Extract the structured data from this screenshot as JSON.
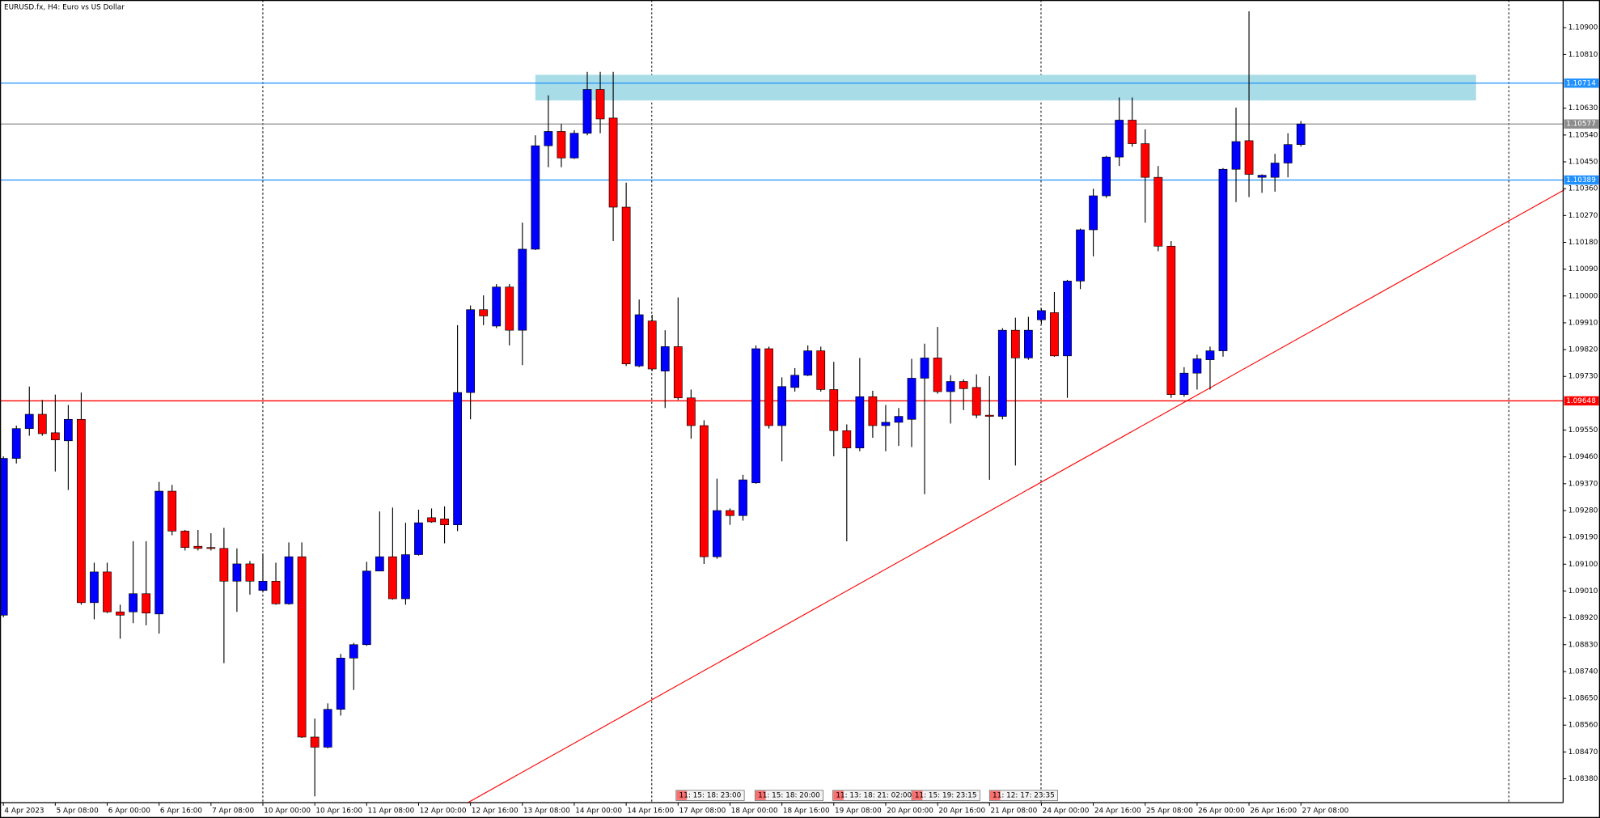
{
  "chart_data": {
    "type": "candlestick",
    "title": "EURUSD.fx, H4:  Euro vs US Dollar",
    "categories": [
      "4 Apr 2023",
      null,
      null,
      null,
      "5 Apr 08:00",
      null,
      null,
      null,
      "6 Apr 00:00",
      null,
      null,
      null,
      "6 Apr 16:00",
      null,
      null,
      null,
      "7 Apr 08:00",
      null,
      null,
      null,
      "10 Apr 00:00",
      null,
      null,
      null,
      "10 Apr 16:00",
      null,
      null,
      null,
      "11 Apr 08:00",
      null,
      null,
      null,
      "12 Apr 00:00",
      null,
      null,
      null,
      "12 Apr 16:00",
      null,
      null,
      null,
      "13 Apr 08:00",
      null,
      null,
      null,
      "14 Apr 00:00",
      null,
      null,
      null,
      "14 Apr 16:00",
      null,
      null,
      null,
      "17 Apr 08:00",
      null,
      null,
      null,
      "18 Apr 00:00",
      null,
      null,
      null,
      "18 Apr 16:00",
      null,
      null,
      null,
      "19 Apr 08:00",
      null,
      null,
      null,
      "20 Apr 00:00",
      null,
      null,
      null,
      "20 Apr 16:00",
      null,
      null,
      null,
      "21 Apr 08:00",
      null,
      null,
      null,
      "24 Apr 00:00",
      null,
      null,
      null,
      "24 Apr 16:00",
      null,
      null,
      null,
      "25 Apr 08:00",
      null,
      null,
      null,
      "26 Apr 00:00",
      null,
      null,
      null,
      "26 Apr 16:00",
      null,
      null,
      null,
      "27 Apr 08:00"
    ],
    "open": [
      1.08929,
      1.09455,
      1.09555,
      1.09603,
      1.09541,
      1.09514,
      1.09586,
      1.08971,
      1.09074,
      1.0894,
      1.0894,
      1.09001,
      1.08933,
      1.09345,
      1.09211,
      1.0916,
      1.09156,
      1.09153,
      1.09043,
      1.09101,
      1.09012,
      1.09043,
      1.08967,
      1.09125,
      1.0852,
      1.08486,
      1.08613,
      1.08785,
      1.0883,
      1.09077,
      1.09125,
      1.08984,
      1.09132,
      1.09256,
      1.09252,
      1.09232,
      1.09676,
      1.09954,
      1.09899,
      1.1003,
      1.09885,
      1.10157,
      1.10504,
      1.10552,
      1.10463,
      1.10546,
      1.10693,
      1.10597,
      1.10298,
      1.09765,
      1.09916,
      1.09748,
      1.0983,
      1.09658,
      1.09565,
      1.09125,
      1.0928,
      1.09263,
      1.09373,
      1.09823,
      1.09565,
      1.09693,
      1.09734,
      1.09816,
      1.09686,
      1.09548,
      1.0949,
      1.09662,
      1.09565,
      1.09576,
      1.09586,
      1.09724,
      1.09792,
      1.09679,
      1.09713,
      1.09693,
      1.096,
      1.09596,
      1.09885,
      1.09792,
      1.0992,
      1.09944,
      1.09799,
      1.1005,
      1.10222,
      1.10336,
      1.10466,
      1.1059,
      1.10511,
      1.10398,
      1.10167,
      1.09669,
      1.09741,
      1.09786,
      1.09816,
      1.10425,
      1.10521,
      1.10398,
      1.10398,
      1.10446,
      1.10508
    ],
    "high": [
      1.09462,
      1.09565,
      1.09696,
      1.09651,
      1.09669,
      1.09634,
      1.09676,
      1.09105,
      1.09105,
      1.08964,
      1.09177,
      1.09177,
      1.09376,
      1.09366,
      1.09215,
      1.09215,
      1.09204,
      1.09222,
      1.09153,
      1.09111,
      1.09136,
      1.09105,
      1.09173,
      1.09173,
      1.08582,
      1.08633,
      1.08799,
      1.08836,
      1.09108,
      1.09277,
      1.0929,
      1.09239,
      1.09283,
      1.09287,
      1.09294,
      1.09902,
      1.09968,
      1.10002,
      1.1004,
      1.1004,
      1.10246,
      1.10539,
      1.10673,
      1.10577,
      1.10556,
      1.10752,
      1.10752,
      1.10752,
      1.1038,
      1.09988,
      1.09937,
      1.09885,
      1.09995,
      1.09686,
      1.09583,
      1.09387,
      1.09287,
      1.094,
      1.09834,
      1.0983,
      1.09727,
      1.09758,
      1.09834,
      1.0983,
      1.09779,
      1.09569,
      1.09792,
      1.09682,
      1.09634,
      1.09624,
      1.09789,
      1.0984,
      1.09896,
      1.09734,
      1.0972,
      1.09737,
      1.09731,
      1.09892,
      1.09927,
      1.0993,
      1.09958,
      1.10013,
      1.10054,
      1.10226,
      1.1036,
      1.1047,
      1.10666,
      1.10666,
      1.10559,
      1.10436,
      1.10184,
      1.09761,
      1.09803,
      1.0983,
      1.10429,
      1.10632,
      1.10955,
      1.10408,
      1.10477,
      1.10546,
      1.10587
    ],
    "low": [
      1.08922,
      1.09438,
      1.09531,
      1.09531,
      1.09411,
      1.09349,
      1.08964,
      1.08915,
      1.08936,
      1.0885,
      1.08902,
      1.08895,
      1.08867,
      1.09197,
      1.09146,
      1.09146,
      1.09146,
      1.08768,
      1.0894,
      1.08998,
      1.09005,
      1.08964,
      1.08964,
      1.08517,
      1.08321,
      1.08482,
      1.08592,
      1.08678,
      1.08826,
      1.09077,
      1.08981,
      1.08964,
      1.09129,
      1.09239,
      1.0917,
      1.09211,
      1.09586,
      1.09902,
      1.09892,
      1.09834,
      1.09768,
      1.10154,
      1.10432,
      1.10432,
      1.1046,
      1.10539,
      1.10546,
      1.10184,
      1.09765,
      1.09761,
      1.09748,
      1.09624,
      1.09651,
      1.09521,
      1.09101,
      1.09118,
      1.09232,
      1.09246,
      1.0937,
      1.09555,
      1.09445,
      1.09679,
      1.09731,
      1.09679,
      1.09462,
      1.09177,
      1.09479,
      1.09524,
      1.09479,
      1.09497,
      1.09493,
      1.09335,
      1.09672,
      1.09572,
      1.09617,
      1.0959,
      1.09383,
      1.09586,
      1.09431,
      1.09786,
      1.09906,
      1.09796,
      1.09658,
      1.10023,
      1.10133,
      1.10329,
      1.10436,
      1.10501,
      1.10246,
      1.1015,
      1.09658,
      1.09662,
      1.09686,
      1.09686,
      1.09796,
      1.10315,
      1.10332,
      1.10346,
      1.1035,
      1.10398,
      1.10501
    ],
    "close": [
      1.09455,
      1.09555,
      1.09603,
      1.09538,
      1.09517,
      1.09586,
      1.08971,
      1.09074,
      1.0894,
      1.08929,
      1.09001,
      1.08936,
      1.09345,
      1.09211,
      1.09156,
      1.09153,
      1.09153,
      1.09043,
      1.09101,
      1.09043,
      1.09043,
      1.08967,
      1.09125,
      1.0852,
      1.08486,
      1.08613,
      1.08785,
      1.0883,
      1.09077,
      1.09125,
      1.08984,
      1.09132,
      1.09239,
      1.09242,
      1.09232,
      1.09676,
      1.09954,
      1.09933,
      1.1003,
      1.09885,
      1.10157,
      1.10504,
      1.10552,
      1.10463,
      1.10546,
      1.10693,
      1.10594,
      1.10298,
      1.09772,
      1.09937,
      1.09755,
      1.0983,
      1.09658,
      1.09565,
      1.09125,
      1.0928,
      1.09263,
      1.09383,
      1.09823,
      1.09565,
      1.09696,
      1.09734,
      1.09816,
      1.09686,
      1.09548,
      1.0949,
      1.09662,
      1.09565,
      1.09576,
      1.09596,
      1.09724,
      1.09792,
      1.09679,
      1.09713,
      1.09689,
      1.096,
      1.09596,
      1.09885,
      1.09792,
      1.09885,
      1.09951,
      1.09799,
      1.1005,
      1.10222,
      1.10336,
      1.10466,
      1.1059,
      1.10511,
      1.10398,
      1.10167,
      1.09669,
      1.09741,
      1.09789,
      1.09816,
      1.10425,
      1.10518,
      1.10408,
      1.10405,
      1.10446,
      1.10508,
      1.10577
    ],
    "up_color": "#0000ff",
    "down_color": "#ff0000",
    "ylim": [
      1.083,
      1.10993
    ],
    "yticks": [
      {
        "value": 1.109,
        "label": "1.10900"
      },
      {
        "value": 1.1081,
        "label": "1.10810"
      },
      {
        "value": 1.1063,
        "label": "1.10630"
      },
      {
        "value": 1.1054,
        "label": "1.10540"
      },
      {
        "value": 1.1045,
        "label": "1.10450"
      },
      {
        "value": 1.1036,
        "label": "1.10360"
      },
      {
        "value": 1.1027,
        "label": "1.10270"
      },
      {
        "value": 1.1018,
        "label": "1.10180"
      },
      {
        "value": 1.1009,
        "label": "1.10090"
      },
      {
        "value": 1.1,
        "label": "1.10000"
      },
      {
        "value": 1.0991,
        "label": "1.09910"
      },
      {
        "value": 1.0982,
        "label": "1.09820"
      },
      {
        "value": 1.0973,
        "label": "1.09730"
      },
      {
        "value": 1.0955,
        "label": "1.09550"
      },
      {
        "value": 1.0946,
        "label": "1.09460"
      },
      {
        "value": 1.0937,
        "label": "1.09370"
      },
      {
        "value": 1.0928,
        "label": "1.09280"
      },
      {
        "value": 1.0919,
        "label": "1.09190"
      },
      {
        "value": 1.091,
        "label": "1.09100"
      },
      {
        "value": 1.0901,
        "label": "1.09010"
      },
      {
        "value": 1.0892,
        "label": "1.08920"
      },
      {
        "value": 1.0883,
        "label": "1.08830"
      },
      {
        "value": 1.0874,
        "label": "1.08740"
      },
      {
        "value": 1.0865,
        "label": "1.08650"
      },
      {
        "value": 1.0856,
        "label": "1.08560"
      },
      {
        "value": 1.0847,
        "label": "1.08470"
      },
      {
        "value": 1.0838,
        "label": "1.08380"
      }
    ],
    "grid": false,
    "levels": [
      {
        "value": 1.10714,
        "color": "#1e90ff"
      },
      {
        "value": 1.10577,
        "color": "#8c8c8c"
      },
      {
        "value": 1.10389,
        "color": "#1e90ff"
      },
      {
        "value": 1.09648,
        "color": "#ff0000"
      }
    ],
    "zone": {
      "x": [
        41,
        113.5
      ],
      "y": [
        1.10656,
        1.10742
      ],
      "color": "#a8dce6"
    },
    "trendline": {
      "x": [
        35.8,
        120.3
      ],
      "y": [
        1.083,
        1.10356
      ],
      "color": "#ff0000"
    },
    "time_markers": [
      "11: 15: 18: 23:00",
      "11: 15: 18: 20:00",
      "11: 13: 18: 21: 02:00",
      "11: 15: 19: 23:15",
      "11: 12: 17: 23:35"
    ]
  }
}
